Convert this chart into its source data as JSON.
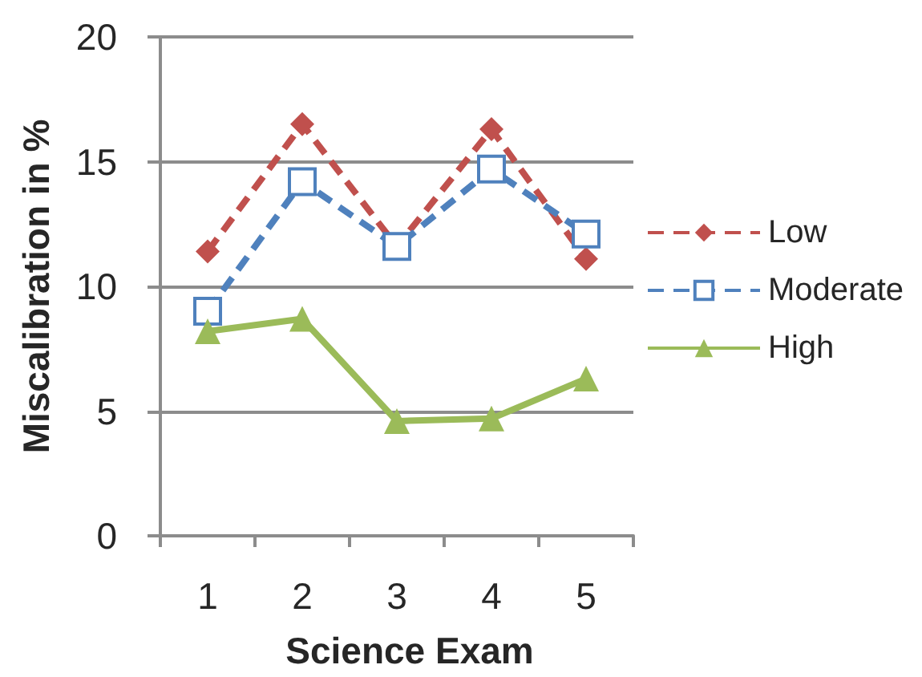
{
  "chart_data": {
    "type": "line",
    "xlabel": "Science Exam",
    "ylabel": "Miscalibration in %",
    "categories": [
      "1",
      "2",
      "3",
      "4",
      "5"
    ],
    "ylim": [
      0,
      20
    ],
    "yticks": [
      0,
      5,
      10,
      15,
      20
    ],
    "grid": "y",
    "legend": "right",
    "series": [
      {
        "name": "Low",
        "color": "#c0504d",
        "values": [
          11.4,
          16.5,
          11.6,
          16.3,
          11.1
        ],
        "marker": "diamond",
        "line_style": "dashed"
      },
      {
        "name": "Moderate",
        "color": "#4f81bd",
        "values": [
          9.0,
          14.2,
          11.6,
          14.7,
          12.1
        ],
        "marker": "square",
        "line_style": "dashed"
      },
      {
        "name": "High",
        "color": "#9bbb59",
        "values": [
          8.2,
          8.7,
          4.6,
          4.7,
          6.3
        ],
        "marker": "triangle",
        "line_style": "solid"
      }
    ]
  }
}
